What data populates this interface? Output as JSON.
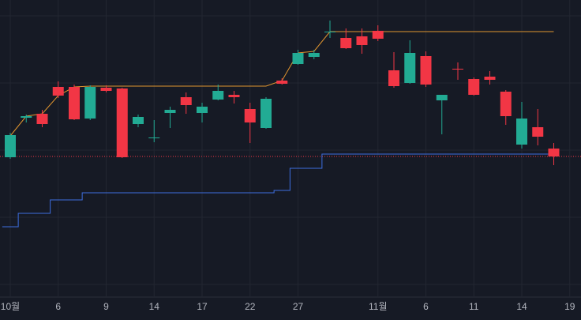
{
  "chart_data": {
    "type": "candlestick",
    "categories": [
      "10월",
      null,
      null,
      "6",
      null,
      null,
      "9",
      null,
      null,
      "14",
      null,
      null,
      "17",
      null,
      null,
      "22",
      null,
      null,
      "27",
      null,
      null,
      null,
      null,
      "11월",
      null,
      null,
      "6",
      null,
      null,
      "11",
      null,
      null,
      "14",
      null,
      null,
      "19"
    ],
    "open": [
      201,
      251,
      256,
      290,
      290,
      250,
      289,
      288,
      243,
      225,
      257,
      277,
      257,
      274,
      280,
      262,
      238,
      298,
      319,
      328,
      359,
      352,
      354,
      361,
      311,
      295,
      329,
      273,
      313,
      300,
      303,
      284,
      217,
      239,
      212,
      null
    ],
    "high": [
      232,
      255,
      261,
      297,
      293,
      292,
      292,
      289,
      255,
      248,
      265,
      283,
      270,
      293,
      285,
      270,
      277,
      301,
      337,
      337,
      374,
      364,
      364,
      368,
      334,
      349,
      335,
      280,
      321,
      302,
      310,
      286,
      271,
      262,
      219,
      null
    ],
    "low": [
      199,
      245,
      239,
      276,
      248,
      248,
      283,
      200,
      239,
      220,
      238,
      256,
      245,
      273,
      269,
      219,
      237,
      293,
      318,
      325,
      352,
      338,
      332,
      348,
      289,
      294,
      290,
      230,
      299,
      279,
      293,
      242,
      212,
      216,
      191,
      null
    ],
    "close": [
      229,
      253,
      243,
      279,
      249,
      290,
      285,
      201,
      252,
      226,
      261,
      267,
      265,
      285,
      277,
      245,
      275,
      294,
      333,
      333,
      360,
      339,
      343,
      351,
      291,
      333,
      293,
      280,
      312,
      280,
      299,
      253,
      250,
      227,
      202,
      null
    ],
    "up_color": "#22ab94",
    "down_color": "#f23645",
    "lines": [
      {
        "color": "#e0952f",
        "step": false,
        "values": [
          228,
          253,
          256,
          279,
          290,
          291,
          291,
          291,
          291,
          291,
          291,
          291,
          291,
          291,
          291,
          291,
          291,
          298,
          333,
          335,
          360,
          360,
          360,
          360,
          360,
          360,
          360,
          360,
          360,
          360,
          360,
          360,
          360,
          360,
          360,
          null
        ]
      },
      {
        "color": "#3d6ee0",
        "step": true,
        "values": [
          113,
          130,
          130,
          147,
          147,
          156,
          156,
          156,
          156,
          156,
          156,
          156,
          156,
          156,
          156,
          156,
          156,
          159,
          187,
          187,
          205,
          205,
          205,
          205,
          205,
          205,
          205,
          205,
          205,
          205,
          205,
          205,
          205,
          205,
          205,
          null
        ]
      }
    ],
    "last_price_color": "#f23645",
    "ylim": [
      0,
      400
    ]
  }
}
